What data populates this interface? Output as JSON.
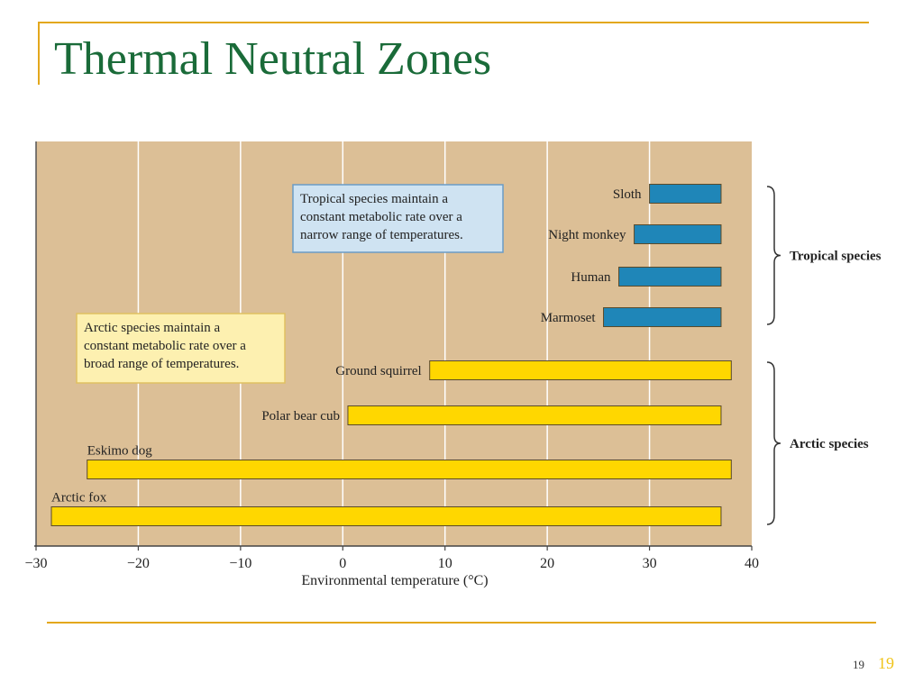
{
  "slide": {
    "title": "Thermal Neutral Zones",
    "page_number_small": "19",
    "page_number_large": "19"
  },
  "colors": {
    "accent_line": "#e3a81c",
    "title": "#1a6b39",
    "plot_bg": "#dcbf96",
    "tropical_bar": "#1f86b8",
    "arctic_bar": "#ffd700",
    "tropical_box": "#cfe3f2",
    "arctic_box": "#fdf0b0"
  },
  "chart_data": {
    "type": "bar",
    "orientation": "horizontal-range",
    "title": "",
    "xlabel": "Environmental temperature (°C)",
    "ylabel": "",
    "xlim": [
      -30,
      40
    ],
    "xticks": [
      -30,
      -20,
      -10,
      0,
      10,
      20,
      30,
      40
    ],
    "xtick_labels": [
      "−30",
      "−20",
      "−10",
      "0",
      "10",
      "20",
      "30",
      "40"
    ],
    "grid": "vertical",
    "groups": [
      {
        "name": "Tropical species",
        "color": "#1f86b8",
        "items": [
          {
            "label": "Sloth",
            "range": [
              30,
              37
            ]
          },
          {
            "label": "Night monkey",
            "range": [
              28.5,
              37
            ]
          },
          {
            "label": "Human",
            "range": [
              27,
              37
            ]
          },
          {
            "label": "Marmoset",
            "range": [
              25.5,
              37
            ]
          }
        ]
      },
      {
        "name": "Arctic species",
        "color": "#ffd700",
        "items": [
          {
            "label": "Ground squirrel",
            "range": [
              8.5,
              38
            ]
          },
          {
            "label": "Polar bear cub",
            "range": [
              0.5,
              37
            ]
          },
          {
            "label": "Eskimo dog",
            "range": [
              -25,
              38
            ]
          },
          {
            "label": "Arctic fox",
            "range": [
              -28.5,
              37
            ]
          }
        ]
      }
    ],
    "annotations": {
      "tropical_note": [
        "Tropical species maintain a",
        "constant metabolic rate over a",
        "narrow range of temperatures."
      ],
      "arctic_note": [
        "Arctic species maintain a",
        "constant metabolic rate over a",
        "broad range of temperatures."
      ]
    }
  }
}
